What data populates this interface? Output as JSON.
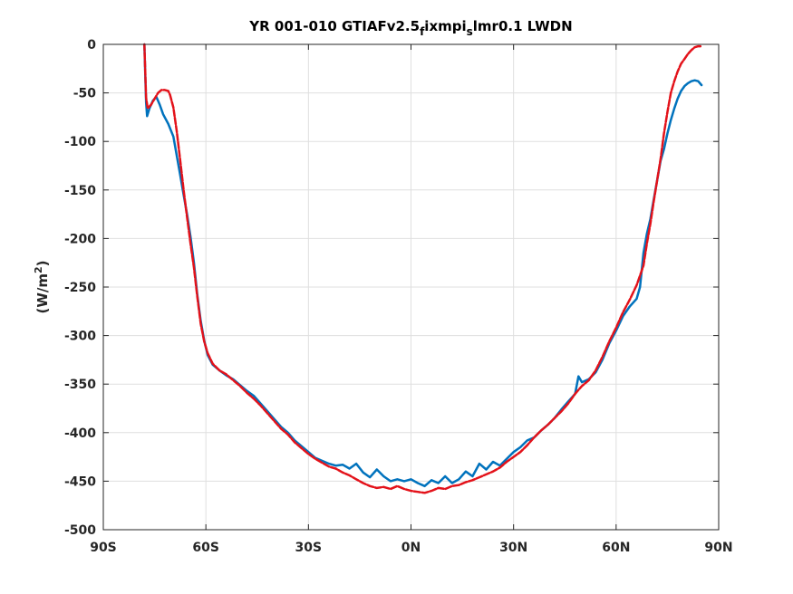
{
  "chart_data": {
    "type": "line",
    "title_main": "YR 001-010 GTIAFv2.5",
    "title_sub1": "f",
    "title_mid": "ixmpi",
    "title_sub2": "s",
    "title_end": "lmr0.1 LWDN",
    "ylabel_main": "(W/m",
    "ylabel_sup": "2",
    "ylabel_end": ")",
    "xlabel": "",
    "xlim": [
      -90,
      90
    ],
    "ylim": [
      -500,
      0
    ],
    "x_ticks": [
      -90,
      -60,
      -30,
      0,
      30,
      60,
      90
    ],
    "x_tick_labels": [
      "90S",
      "60S",
      "30S",
      "0N",
      "30N",
      "60N",
      "90N"
    ],
    "y_ticks": [
      0,
      -50,
      -100,
      -150,
      -200,
      -250,
      -300,
      -350,
      -400,
      -450,
      -500
    ],
    "y_tick_labels": [
      "0",
      "-50",
      "-100",
      "-150",
      "-200",
      "-250",
      "-300",
      "-350",
      "-400",
      "-450",
      "-500"
    ],
    "grid": true,
    "legend": "none",
    "series": [
      {
        "color": "#0072bd",
        "style": "solid",
        "points": [
          [
            -78,
            0
          ],
          [
            -77.5,
            -60
          ],
          [
            -77.2,
            -74
          ],
          [
            -76.5,
            -66
          ],
          [
            -75.5,
            -58
          ],
          [
            -74.5,
            -54
          ],
          [
            -73.5,
            -62
          ],
          [
            -72.5,
            -72
          ],
          [
            -71,
            -82
          ],
          [
            -69.5,
            -95
          ],
          [
            -68.5,
            -115
          ],
          [
            -67.5,
            -135
          ],
          [
            -66.5,
            -155
          ],
          [
            -65.5,
            -175
          ],
          [
            -64.5,
            -198
          ],
          [
            -63.5,
            -225
          ],
          [
            -62.5,
            -258
          ],
          [
            -61.5,
            -285
          ],
          [
            -60.5,
            -305
          ],
          [
            -59.5,
            -320
          ],
          [
            -58,
            -330
          ],
          [
            -56,
            -336
          ],
          [
            -54,
            -341
          ],
          [
            -52,
            -345
          ],
          [
            -50,
            -351
          ],
          [
            -48,
            -357
          ],
          [
            -46,
            -362
          ],
          [
            -44,
            -370
          ],
          [
            -42,
            -378
          ],
          [
            -40,
            -386
          ],
          [
            -38,
            -394
          ],
          [
            -36,
            -400
          ],
          [
            -34,
            -408
          ],
          [
            -32,
            -414
          ],
          [
            -30,
            -420
          ],
          [
            -28,
            -426
          ],
          [
            -26,
            -429
          ],
          [
            -24,
            -432
          ],
          [
            -22,
            -434
          ],
          [
            -20,
            -433
          ],
          [
            -18,
            -437
          ],
          [
            -16,
            -432
          ],
          [
            -14,
            -441
          ],
          [
            -12,
            -446
          ],
          [
            -10,
            -438
          ],
          [
            -8,
            -445
          ],
          [
            -6,
            -450
          ],
          [
            -4,
            -448
          ],
          [
            -2,
            -450
          ],
          [
            0,
            -448
          ],
          [
            2,
            -452
          ],
          [
            4,
            -455
          ],
          [
            6,
            -449
          ],
          [
            8,
            -452
          ],
          [
            10,
            -445
          ],
          [
            12,
            -452
          ],
          [
            14,
            -448
          ],
          [
            16,
            -440
          ],
          [
            18,
            -445
          ],
          [
            20,
            -432
          ],
          [
            22,
            -438
          ],
          [
            24,
            -430
          ],
          [
            26,
            -434
          ],
          [
            28,
            -427
          ],
          [
            30,
            -420
          ],
          [
            32,
            -415
          ],
          [
            34,
            -408
          ],
          [
            36,
            -405
          ],
          [
            38,
            -398
          ],
          [
            40,
            -392
          ],
          [
            42,
            -385
          ],
          [
            44,
            -376
          ],
          [
            46,
            -368
          ],
          [
            48,
            -360
          ],
          [
            49,
            -342
          ],
          [
            50,
            -348
          ],
          [
            52,
            -345
          ],
          [
            54,
            -338
          ],
          [
            56,
            -325
          ],
          [
            58,
            -308
          ],
          [
            60,
            -295
          ],
          [
            62,
            -280
          ],
          [
            64,
            -270
          ],
          [
            66,
            -262
          ],
          [
            67,
            -250
          ],
          [
            68,
            -215
          ],
          [
            69,
            -195
          ],
          [
            70,
            -180
          ],
          [
            71,
            -160
          ],
          [
            72,
            -140
          ],
          [
            73,
            -120
          ],
          [
            74,
            -108
          ],
          [
            75,
            -92
          ],
          [
            76,
            -78
          ],
          [
            77,
            -66
          ],
          [
            78,
            -56
          ],
          [
            79,
            -48
          ],
          [
            80,
            -43
          ],
          [
            81,
            -40
          ],
          [
            82,
            -38
          ],
          [
            83,
            -37
          ],
          [
            84,
            -38
          ],
          [
            85,
            -42
          ]
        ]
      },
      {
        "color": "#e3121a",
        "style": "dashed",
        "points": [
          [
            -78,
            0
          ],
          [
            -77.5,
            -55
          ],
          [
            -77,
            -66
          ],
          [
            -76,
            -62
          ],
          [
            -75,
            -56
          ],
          [
            -74,
            -50
          ],
          [
            -73,
            -47
          ],
          [
            -72,
            -47
          ],
          [
            -71,
            -48
          ],
          [
            -70.5,
            -52
          ],
          [
            -69.5,
            -65
          ],
          [
            -68.5,
            -90
          ],
          [
            -67.5,
            -120
          ],
          [
            -66.5,
            -150
          ],
          [
            -65.5,
            -178
          ],
          [
            -64.5,
            -205
          ],
          [
            -63.5,
            -230
          ],
          [
            -62.5,
            -260
          ],
          [
            -61.5,
            -288
          ],
          [
            -60.5,
            -306
          ],
          [
            -59.5,
            -318
          ],
          [
            -58,
            -329
          ],
          [
            -56,
            -336
          ],
          [
            -54,
            -340
          ],
          [
            -52,
            -346
          ],
          [
            -50,
            -352
          ],
          [
            -48,
            -359
          ],
          [
            -46,
            -365
          ],
          [
            -44,
            -372
          ],
          [
            -42,
            -380
          ],
          [
            -40,
            -388
          ],
          [
            -38,
            -396
          ],
          [
            -36,
            -402
          ],
          [
            -34,
            -410
          ],
          [
            -32,
            -416
          ],
          [
            -30,
            -422
          ],
          [
            -28,
            -427
          ],
          [
            -26,
            -431
          ],
          [
            -24,
            -435
          ],
          [
            -22,
            -437
          ],
          [
            -20,
            -441
          ],
          [
            -18,
            -444
          ],
          [
            -16,
            -448
          ],
          [
            -14,
            -452
          ],
          [
            -12,
            -455
          ],
          [
            -10,
            -457
          ],
          [
            -8,
            -456
          ],
          [
            -6,
            -458
          ],
          [
            -4,
            -455
          ],
          [
            -2,
            -458
          ],
          [
            0,
            -460
          ],
          [
            2,
            -461
          ],
          [
            4,
            -462
          ],
          [
            6,
            -460
          ],
          [
            8,
            -457
          ],
          [
            10,
            -458
          ],
          [
            12,
            -455
          ],
          [
            14,
            -454
          ],
          [
            16,
            -451
          ],
          [
            18,
            -449
          ],
          [
            20,
            -446
          ],
          [
            22,
            -443
          ],
          [
            24,
            -440
          ],
          [
            26,
            -436
          ],
          [
            28,
            -430
          ],
          [
            30,
            -425
          ],
          [
            32,
            -420
          ],
          [
            34,
            -413
          ],
          [
            36,
            -405
          ],
          [
            38,
            -398
          ],
          [
            40,
            -392
          ],
          [
            42,
            -385
          ],
          [
            44,
            -378
          ],
          [
            46,
            -370
          ],
          [
            48,
            -360
          ],
          [
            50,
            -352
          ],
          [
            52,
            -346
          ],
          [
            54,
            -336
          ],
          [
            56,
            -322
          ],
          [
            58,
            -306
          ],
          [
            60,
            -292
          ],
          [
            62,
            -276
          ],
          [
            64,
            -263
          ],
          [
            66,
            -248
          ],
          [
            68,
            -228
          ],
          [
            69,
            -205
          ],
          [
            70,
            -185
          ],
          [
            71,
            -162
          ],
          [
            72,
            -140
          ],
          [
            73,
            -118
          ],
          [
            74,
            -92
          ],
          [
            75,
            -70
          ],
          [
            76,
            -50
          ],
          [
            77,
            -38
          ],
          [
            78,
            -28
          ],
          [
            79,
            -20
          ],
          [
            80,
            -15
          ],
          [
            81,
            -10
          ],
          [
            82,
            -6
          ],
          [
            83,
            -3
          ],
          [
            84,
            -2
          ],
          [
            85,
            -2
          ]
        ]
      }
    ]
  }
}
